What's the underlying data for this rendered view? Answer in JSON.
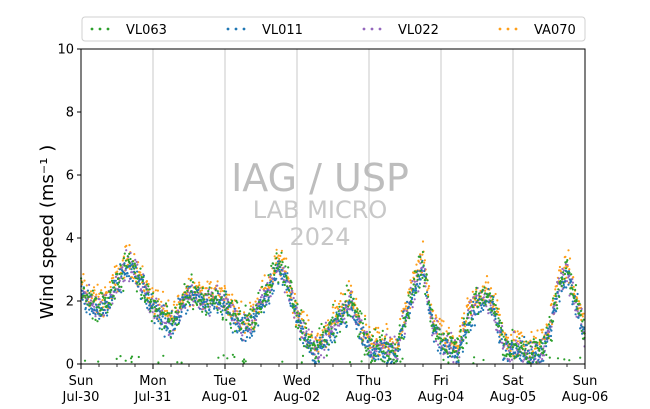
{
  "chart_data": {
    "type": "scatter",
    "ylabel": "Wind speed (ms⁻¹ )",
    "ylim": [
      0,
      10
    ],
    "yticks": [
      0,
      2,
      4,
      6,
      8,
      10
    ],
    "x_range": [
      "2023-07-30",
      "2023-08-06"
    ],
    "xtick_labels": [
      {
        "day": "Sun",
        "date": "Jul-30"
      },
      {
        "day": "Mon",
        "date": "Jul-31"
      },
      {
        "day": "Tue",
        "date": "Aug-01"
      },
      {
        "day": "Wed",
        "date": "Aug-02"
      },
      {
        "day": "Thu",
        "date": "Aug-03"
      },
      {
        "day": "Fri",
        "date": "Aug-04"
      },
      {
        "day": "Sat",
        "date": "Aug-05"
      },
      {
        "day": "Sun",
        "date": "Aug-06"
      }
    ],
    "grid": "vertical-at-day-boundaries",
    "legend_position": "top",
    "watermark": [
      "IAG / USP",
      "LAB MICRO",
      "2024"
    ],
    "series": [
      {
        "name": "VL063",
        "color": "#2ca02c"
      },
      {
        "name": "VL011",
        "color": "#1f77b4"
      },
      {
        "name": "VL022",
        "color": "#9467bd"
      },
      {
        "name": "VA070",
        "color": "#ff9f1a"
      }
    ],
    "daily_profile_hourly": {
      "hours": [
        0,
        3,
        6,
        9,
        12,
        15,
        18,
        21
      ],
      "days": [
        {
          "date": "Jul-30",
          "values": [
            2.3,
            2.0,
            1.8,
            2.0,
            2.6,
            3.2,
            3.0,
            2.4
          ]
        },
        {
          "date": "Jul-31",
          "values": [
            1.9,
            1.6,
            1.3,
            1.8,
            2.3,
            2.2,
            2.0,
            2.1
          ]
        },
        {
          "date": "Aug-01",
          "values": [
            2.0,
            1.6,
            1.2,
            1.4,
            2.0,
            2.5,
            3.2,
            2.6
          ]
        },
        {
          "date": "Aug-02",
          "values": [
            1.5,
            0.9,
            0.4,
            0.8,
            1.2,
            1.6,
            2.1,
            1.2
          ]
        },
        {
          "date": "Aug-03",
          "values": [
            0.6,
            0.5,
            0.5,
            0.4,
            1.5,
            2.5,
            3.2,
            1.4
          ]
        },
        {
          "date": "Aug-04",
          "values": [
            0.7,
            0.6,
            0.5,
            1.5,
            2.0,
            2.2,
            1.8,
            0.6
          ]
        },
        {
          "date": "Aug-05",
          "values": [
            0.5,
            0.5,
            0.4,
            0.4,
            1.0,
            2.5,
            3.0,
            2.0
          ]
        }
      ]
    }
  }
}
